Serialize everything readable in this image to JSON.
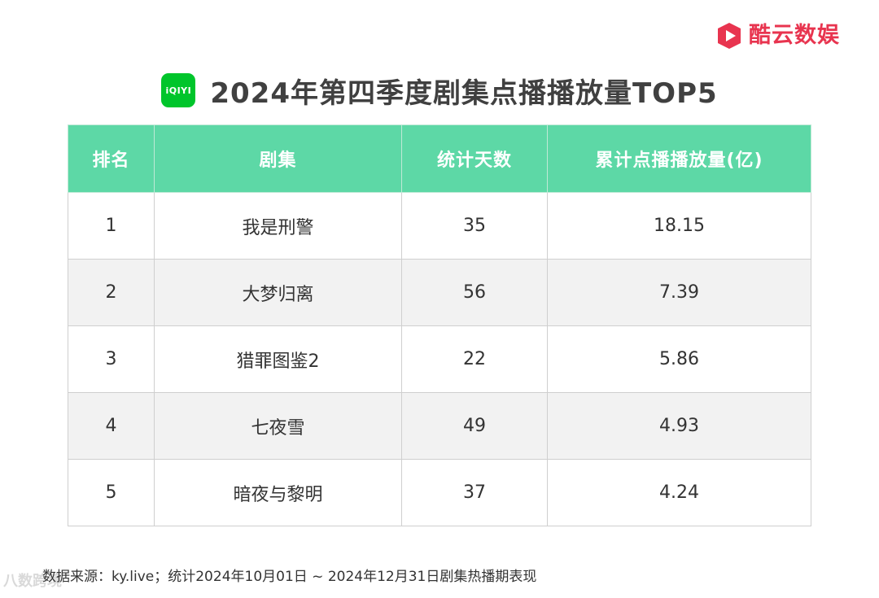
{
  "brand": {
    "name": "酷云数娱",
    "color": "#e8344f",
    "icon": "play-square-icon"
  },
  "title": {
    "logo_text": "iQIYI",
    "logo_color": "#00c52b",
    "text": "2024年第四季度剧集点播播放量TOP5"
  },
  "table": {
    "header_color": "#5dd8a6",
    "headers": [
      "排名",
      "剧集",
      "统计天数",
      "累计点播播放量(亿)"
    ],
    "rows": [
      [
        "1",
        "我是刑警",
        "35",
        "18.15"
      ],
      [
        "2",
        "大梦归离",
        "56",
        "7.39"
      ],
      [
        "3",
        "猎罪图鉴2",
        "22",
        "5.86"
      ],
      [
        "4",
        "七夜雪",
        "49",
        "4.93"
      ],
      [
        "5",
        "暗夜与黎明",
        "37",
        "4.24"
      ]
    ]
  },
  "footnote": "数据来源：ky.live；统计2024年10月01日 ~ 2024年12月31日剧集热播期表现",
  "watermark": "八数跨境"
}
